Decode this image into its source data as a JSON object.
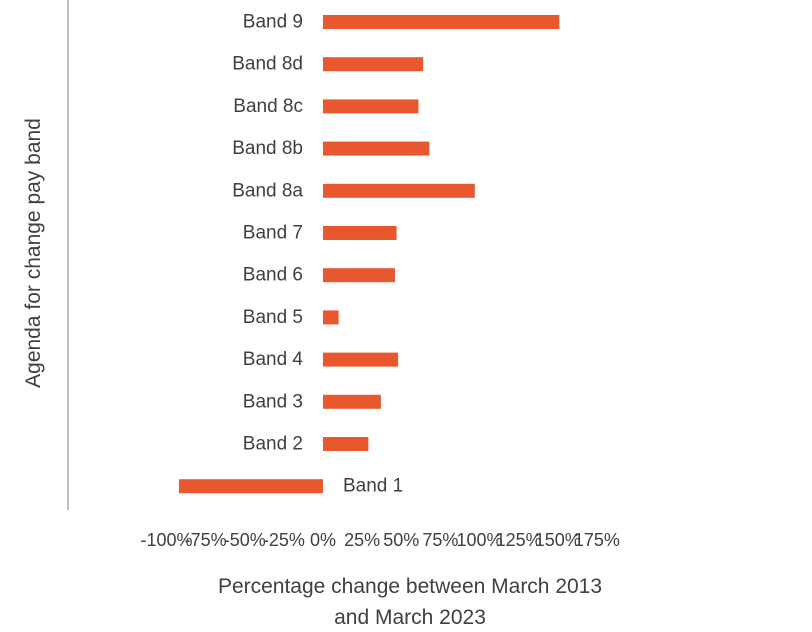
{
  "chart_data": {
    "type": "bar",
    "orientation": "horizontal",
    "title": "",
    "xlabel_lines": [
      "Percentage change between March 2013",
      "and March 2023"
    ],
    "ylabel": "Agenda for change pay band",
    "categories": [
      "Band 9",
      "Band 8d",
      "Band 8c",
      "Band 8b",
      "Band 8a",
      "Band 7",
      "Band 6",
      "Band 5",
      "Band 4",
      "Band 3",
      "Band 2",
      "Band 1"
    ],
    "values": [
      151,
      64,
      61,
      68,
      97,
      47,
      46,
      10,
      48,
      37,
      29,
      -92
    ],
    "xlim": [
      -100,
      175
    ],
    "xticks": [
      -100,
      -75,
      -50,
      -25,
      0,
      25,
      50,
      75,
      100,
      125,
      150,
      175
    ],
    "xtick_labels": [
      "-100%",
      "-75%",
      "-50%",
      "-25%",
      "0%",
      "25%",
      "50%",
      "75%",
      "100%",
      "125%",
      "150%",
      "175%"
    ],
    "grid": false,
    "legend": "none",
    "bar_color": "#E8582F"
  }
}
